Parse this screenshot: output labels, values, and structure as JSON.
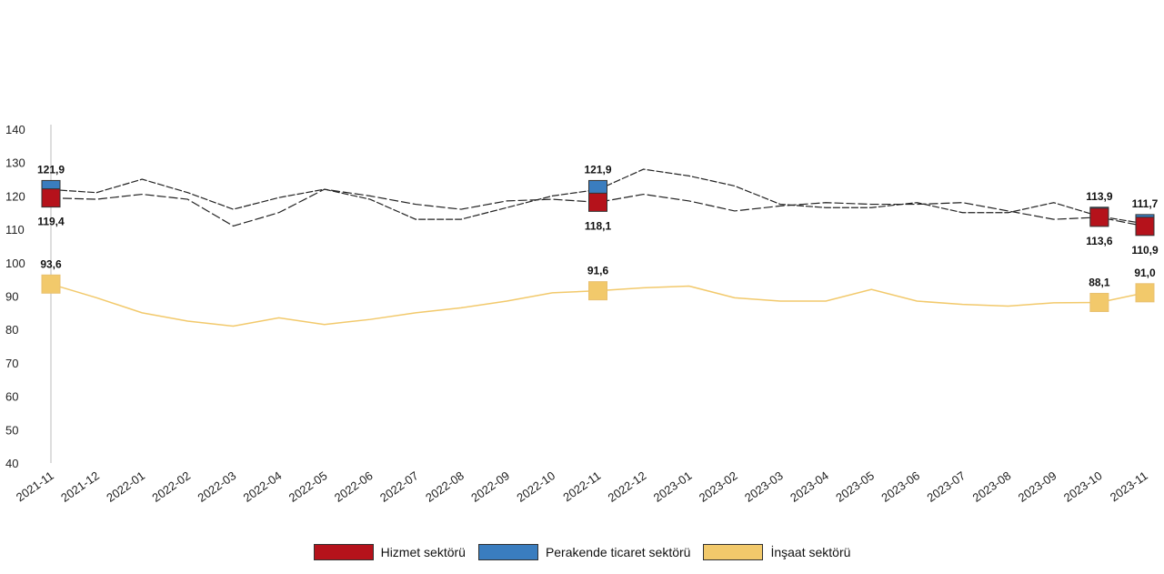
{
  "chart_data": {
    "type": "line",
    "title": "",
    "xlabel": "",
    "ylabel": "",
    "ylim": [
      40,
      140
    ],
    "yticks": [
      40,
      50,
      60,
      70,
      80,
      90,
      100,
      110,
      120,
      130,
      140
    ],
    "categories": [
      "2021-11",
      "2021-12",
      "2022-01",
      "2022-02",
      "2022-03",
      "2022-04",
      "2022-05",
      "2022-06",
      "2022-07",
      "2022-08",
      "2022-09",
      "2022-10",
      "2022-11",
      "2022-12",
      "2023-01",
      "2023-02",
      "2023-03",
      "2023-04",
      "2023-05",
      "2023-06",
      "2023-07",
      "2023-08",
      "2023-09",
      "2023-10",
      "2023-11"
    ],
    "legend_position": "bottom",
    "series": [
      {
        "name": "Hizmet sektörü",
        "color": "#b5121b",
        "values": [
          119.4,
          119,
          120.5,
          119,
          111,
          115,
          122,
          120,
          117.5,
          116,
          118.5,
          119,
          118.1,
          120.5,
          118.5,
          115.5,
          117,
          118,
          117.5,
          117.5,
          118,
          115.5,
          113,
          113.6,
          110.9
        ],
        "labels": [
          {
            "index": 0,
            "text": "119,4",
            "pos": "below"
          },
          {
            "index": 12,
            "text": "118,1",
            "pos": "below"
          },
          {
            "index": 23,
            "text": "113,6",
            "pos": "below"
          },
          {
            "index": 24,
            "text": "110,9",
            "pos": "below"
          }
        ]
      },
      {
        "name": "Perakende ticaret sektörü",
        "color": "#3a7dbf",
        "values": [
          121.9,
          121,
          125,
          121,
          116,
          119.5,
          122,
          119,
          113,
          113,
          116.5,
          120,
          121.9,
          128,
          126,
          123,
          117.5,
          116.5,
          116.5,
          118,
          115,
          115,
          118,
          113.9,
          111.7
        ],
        "labels": [
          {
            "index": 0,
            "text": "121,9",
            "pos": "above"
          },
          {
            "index": 12,
            "text": "121,9",
            "pos": "above"
          },
          {
            "index": 23,
            "text": "113,9",
            "pos": "above"
          },
          {
            "index": 24,
            "text": "111,7",
            "pos": "above"
          }
        ]
      },
      {
        "name": "İnşaat sektörü",
        "color": "#f2c96b",
        "values": [
          93.6,
          89.5,
          85,
          82.5,
          81,
          83.5,
          81.5,
          83,
          85,
          86.5,
          88.5,
          91,
          91.6,
          92.5,
          93,
          89.5,
          88.5,
          88.5,
          92,
          88.5,
          87.5,
          87,
          88,
          88.1,
          91.0
        ],
        "labels": [
          {
            "index": 0,
            "text": "93,6",
            "pos": "above"
          },
          {
            "index": 12,
            "text": "91,6",
            "pos": "above"
          },
          {
            "index": 23,
            "text": "88,1",
            "pos": "above"
          },
          {
            "index": 24,
            "text": "91,0",
            "pos": "above"
          }
        ]
      }
    ]
  }
}
